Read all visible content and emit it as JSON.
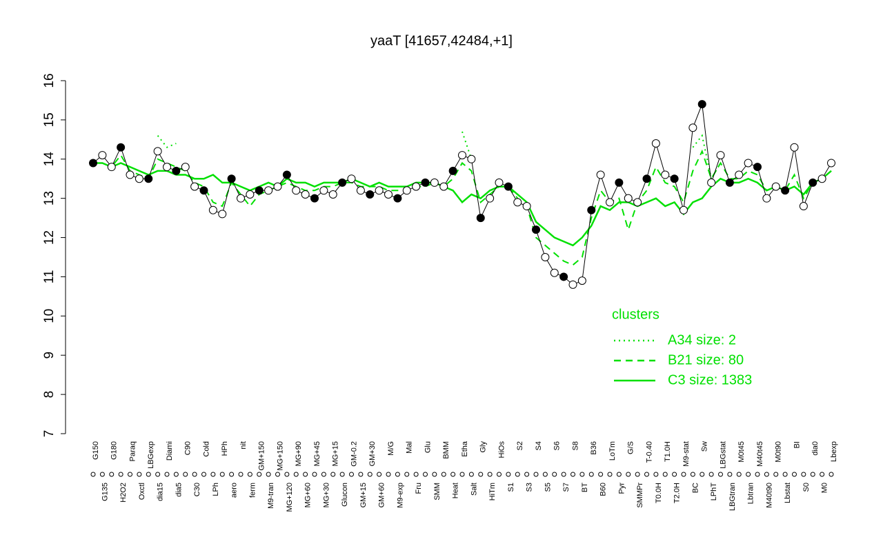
{
  "chart_data": {
    "type": "line",
    "title": "yaaT [41657,42484,+1]",
    "categories": [
      "G150",
      "G135",
      "G180",
      "H2O2",
      "Paraq",
      "Oxctl",
      "LBGexp",
      "dia15",
      "Diami",
      "dia5",
      "C90",
      "C30",
      "Cold",
      "LPh",
      "HPh",
      "aero",
      "nit",
      "ferm",
      "GM+150",
      "M9-tran",
      "MG+150",
      "MG+120",
      "MG+90",
      "MG+60",
      "MG+45",
      "MG+30",
      "MG+15",
      "Glucon",
      "GM-0.2",
      "GM+15",
      "GM+30",
      "GM+60",
      "M/G",
      "M9-exp",
      "Mal",
      "Fru",
      "Glu",
      "SMM",
      "BMM",
      "Heat",
      "Etha",
      "Salt",
      "Gly",
      "HiTm",
      "HiOs",
      "S1",
      "S2",
      "S3",
      "S4",
      "S5",
      "S6",
      "S7",
      "S8",
      "BT",
      "B36",
      "B60",
      "LoTm",
      "Pyr",
      "G/S",
      "SMMPr",
      "T-0.40",
      "T0.0H",
      "T1.0H",
      "T2.0H",
      "M9-stat",
      "BC",
      "Sw",
      "LPhT",
      "LBGstat",
      "LBGtran",
      "M0t45",
      "Lbtran",
      "M40t45",
      "M40t90",
      "M0t90",
      "Lbstat",
      "BI",
      "S0",
      "dia0",
      "M0",
      "Lbexp"
    ],
    "values": [
      13.9,
      14.1,
      13.8,
      14.3,
      13.6,
      13.5,
      13.5,
      14.2,
      13.8,
      13.7,
      13.8,
      13.3,
      13.2,
      12.7,
      12.6,
      13.5,
      13.0,
      13.1,
      13.2,
      13.2,
      13.3,
      13.6,
      13.2,
      13.1,
      13.0,
      13.2,
      13.1,
      13.4,
      13.5,
      13.2,
      13.1,
      13.2,
      13.1,
      13.0,
      13.2,
      13.3,
      13.4,
      13.4,
      13.3,
      13.7,
      14.1,
      14.0,
      12.5,
      13.0,
      13.4,
      13.3,
      12.9,
      12.8,
      12.2,
      11.5,
      11.1,
      11.0,
      10.8,
      10.9,
      12.7,
      13.6,
      12.9,
      13.4,
      13.0,
      12.9,
      13.5,
      14.4,
      13.6,
      13.5,
      12.7,
      14.8,
      15.4,
      13.4,
      14.1,
      13.4,
      13.6,
      13.9,
      13.8,
      13.0,
      13.3,
      13.2,
      14.3,
      12.8,
      13.4,
      13.5,
      13.9
    ],
    "series": [
      {
        "name": "A34 size: 2",
        "color": "#00e000",
        "dash": "2,5",
        "values": [
          null,
          null,
          null,
          null,
          null,
          null,
          null,
          14.6,
          14.3,
          14.4,
          null,
          null,
          null,
          null,
          null,
          null,
          null,
          null,
          null,
          null,
          null,
          null,
          null,
          null,
          null,
          null,
          null,
          null,
          null,
          null,
          null,
          null,
          null,
          null,
          null,
          null,
          null,
          null,
          null,
          null,
          14.7,
          14.0,
          null,
          null,
          null,
          null,
          null,
          null,
          null,
          null,
          null,
          null,
          null,
          null,
          null,
          null,
          null,
          null,
          null,
          null,
          null,
          null,
          null,
          null,
          null,
          14.3,
          14.6,
          13.5,
          13.9,
          null,
          null,
          null,
          null,
          null,
          null,
          null,
          null,
          null,
          null,
          null,
          null
        ]
      },
      {
        "name": "B21 size: 80",
        "color": "#00e000",
        "dash": "10,7",
        "values": [
          13.9,
          13.9,
          13.8,
          14.1,
          13.7,
          13.6,
          13.5,
          14.0,
          13.9,
          13.8,
          13.7,
          13.4,
          13.3,
          12.9,
          12.8,
          13.4,
          13.1,
          12.8,
          13.1,
          13.2,
          13.3,
          13.4,
          13.3,
          13.2,
          13.2,
          13.3,
          13.3,
          13.4,
          13.4,
          13.3,
          13.3,
          13.3,
          13.2,
          13.2,
          13.2,
          13.3,
          13.3,
          13.4,
          13.3,
          13.5,
          13.9,
          13.7,
          12.9,
          13.1,
          13.3,
          13.3,
          13.0,
          12.8,
          12.0,
          11.8,
          11.6,
          11.4,
          11.3,
          11.5,
          12.5,
          13.2,
          12.9,
          13.0,
          12.2,
          12.9,
          13.2,
          13.8,
          13.4,
          13.3,
          12.9,
          13.7,
          14.2,
          13.5,
          13.9,
          13.5,
          13.5,
          13.7,
          13.6,
          13.2,
          13.3,
          13.2,
          13.6,
          13.0,
          13.4,
          13.5,
          13.7
        ]
      },
      {
        "name": "C3 size: 1383",
        "color": "#00e000",
        "dash": "",
        "values": [
          13.9,
          13.9,
          13.8,
          13.9,
          13.8,
          13.7,
          13.6,
          13.7,
          13.7,
          13.6,
          13.6,
          13.5,
          13.5,
          13.6,
          13.4,
          13.4,
          13.3,
          13.2,
          13.3,
          13.4,
          13.3,
          13.5,
          13.4,
          13.4,
          13.3,
          13.4,
          13.4,
          13.4,
          13.5,
          13.4,
          13.3,
          13.4,
          13.3,
          13.3,
          13.3,
          13.4,
          13.4,
          13.4,
          13.3,
          13.2,
          12.9,
          13.1,
          13.0,
          13.2,
          13.3,
          13.3,
          13.1,
          12.9,
          12.4,
          12.2,
          12.0,
          11.9,
          11.8,
          12.0,
          12.3,
          12.8,
          12.7,
          12.9,
          12.9,
          12.8,
          12.9,
          13.0,
          12.8,
          12.9,
          12.6,
          12.9,
          13.0,
          13.3,
          13.5,
          13.4,
          13.4,
          13.5,
          13.4,
          13.2,
          13.3,
          13.2,
          13.3,
          13.1,
          13.4,
          13.5,
          13.7
        ]
      }
    ],
    "ylim": [
      7,
      16
    ],
    "yticks": [
      7,
      8,
      9,
      10,
      11,
      12,
      13,
      14,
      15,
      16
    ],
    "legend_title": "clusters",
    "legend_position": "right"
  }
}
